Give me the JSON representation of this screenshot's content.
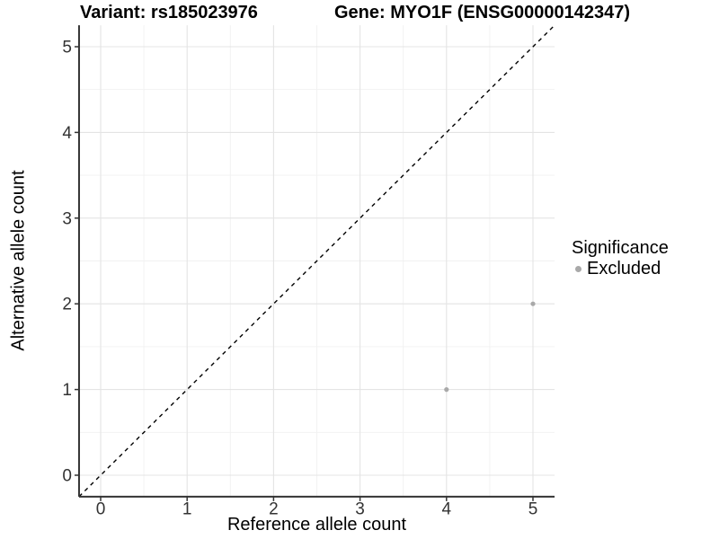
{
  "chart_data": {
    "type": "scatter",
    "titles": {
      "variant": "Variant: rs185023976",
      "gene": "Gene: MYO1F (ENSG00000142347)"
    },
    "xlabel": "Reference allele count",
    "ylabel": "Alternative allele count",
    "xlim": [
      -0.25,
      5.25
    ],
    "ylim": [
      -0.25,
      5.25
    ],
    "x_ticks": [
      "0",
      "1",
      "2",
      "3",
      "4",
      "5"
    ],
    "y_ticks": [
      "0",
      "1",
      "2",
      "3",
      "4",
      "5"
    ],
    "grid": {
      "show": true,
      "major_step": 1,
      "minor_step": 0.5,
      "major_color": "#e4e4e4",
      "minor_color": "#f1f1f1"
    },
    "identity_line": {
      "equation": "y = x",
      "style": "dashed",
      "color": "#000000"
    },
    "series": [
      {
        "name": "Excluded",
        "color": "#a9a9a9",
        "points": [
          {
            "x": 4,
            "y": 1
          },
          {
            "x": 5,
            "y": 2
          }
        ]
      }
    ],
    "legend": {
      "title": "Significance",
      "position": "right",
      "items": [
        {
          "label": "Excluded",
          "color": "#a9a9a9",
          "marker": "circle"
        }
      ]
    },
    "colors": {
      "background": "#ffffff",
      "axis_line": "#333333",
      "tick_mark": "#333333",
      "tick_text": "#333333",
      "title_text": "#000000"
    }
  }
}
